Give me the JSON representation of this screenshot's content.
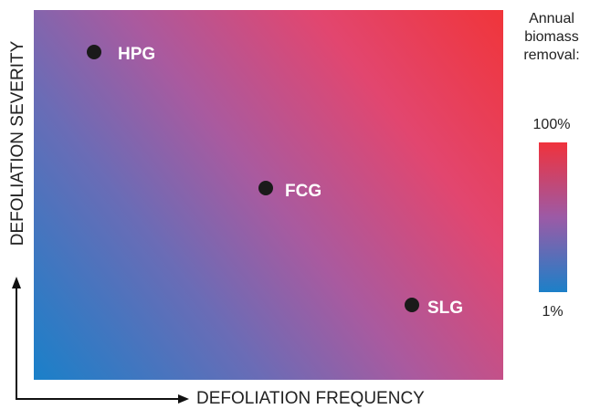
{
  "diagram": {
    "y_axis_label": "DEFOLIATION SEVERITY",
    "x_axis_label": "DEFOLIATION FREQUENCY",
    "points": [
      {
        "label": "HPG"
      },
      {
        "label": "FCG"
      },
      {
        "label": "SLG"
      }
    ],
    "legend": {
      "title_lines": [
        "Annual",
        "biomass",
        "removal:"
      ],
      "max_label": "100%",
      "min_label": "1%"
    }
  }
}
